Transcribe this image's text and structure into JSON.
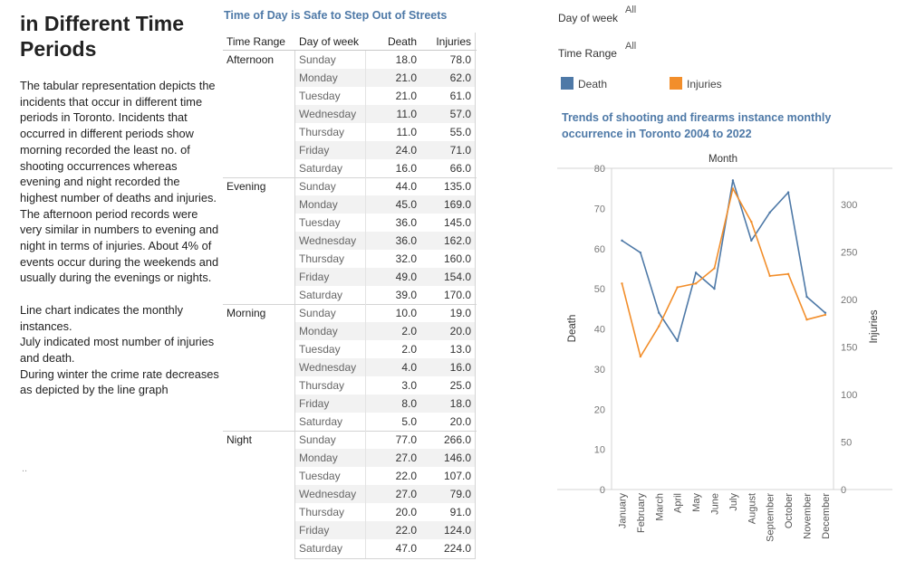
{
  "story": {
    "title": "in Different Time Periods",
    "paragraphs": [
      "The tabular representation depicts the incidents that occur in different time periods in Toronto. Incidents that occurred in different periods show morning recorded the least no. of shooting occurrences whereas evening and night recorded the highest number of deaths and injuries. The afternoon period records were very similar in numbers to evening and night in terms of injuries. About 4% of events occur during the weekends and usually during the evenings or nights.",
      "Line chart indicates the monthly instances.\nJuly indicated most number of injuries and death.\nDuring winter the crime rate decreases as depicted by the line graph"
    ],
    "ellipsis": ".."
  },
  "table": {
    "title": "Time of Day is Safe to Step Out of Streets",
    "headers": {
      "time_range": "Time Range",
      "day": "Day of week",
      "death": "Death",
      "injuries": "Injuries"
    },
    "groups": [
      {
        "name": "Afternoon",
        "rows": [
          [
            "Sunday",
            "18.0",
            "78.0"
          ],
          [
            "Monday",
            "21.0",
            "62.0"
          ],
          [
            "Tuesday",
            "21.0",
            "61.0"
          ],
          [
            "Wednesday",
            "11.0",
            "57.0"
          ],
          [
            "Thursday",
            "11.0",
            "55.0"
          ],
          [
            "Friday",
            "24.0",
            "71.0"
          ],
          [
            "Saturday",
            "16.0",
            "66.0"
          ]
        ]
      },
      {
        "name": "Evening",
        "rows": [
          [
            "Sunday",
            "44.0",
            "135.0"
          ],
          [
            "Monday",
            "45.0",
            "169.0"
          ],
          [
            "Tuesday",
            "36.0",
            "145.0"
          ],
          [
            "Wednesday",
            "36.0",
            "162.0"
          ],
          [
            "Thursday",
            "32.0",
            "160.0"
          ],
          [
            "Friday",
            "49.0",
            "154.0"
          ],
          [
            "Saturday",
            "39.0",
            "170.0"
          ]
        ]
      },
      {
        "name": "Morning",
        "rows": [
          [
            "Sunday",
            "10.0",
            "19.0"
          ],
          [
            "Monday",
            "2.0",
            "20.0"
          ],
          [
            "Tuesday",
            "2.0",
            "13.0"
          ],
          [
            "Wednesday",
            "4.0",
            "16.0"
          ],
          [
            "Thursday",
            "3.0",
            "25.0"
          ],
          [
            "Friday",
            "8.0",
            "18.0"
          ],
          [
            "Saturday",
            "5.0",
            "20.0"
          ]
        ]
      },
      {
        "name": "Night",
        "rows": [
          [
            "Sunday",
            "77.0",
            "266.0"
          ],
          [
            "Monday",
            "27.0",
            "146.0"
          ],
          [
            "Tuesday",
            "22.0",
            "107.0"
          ],
          [
            "Wednesday",
            "27.0",
            "79.0"
          ],
          [
            "Thursday",
            "20.0",
            "91.0"
          ],
          [
            "Friday",
            "22.0",
            "124.0"
          ],
          [
            "Saturday",
            "47.0",
            "224.0"
          ]
        ]
      }
    ]
  },
  "filters": {
    "day_of_week": {
      "label": "Day of week",
      "value": "All"
    },
    "time_range": {
      "label": "Time Range",
      "value": "All"
    }
  },
  "legend": {
    "death": {
      "label": "Death",
      "color": "#4e79a7"
    },
    "injuries": {
      "label": "Injuries",
      "color": "#f28e2b"
    }
  },
  "chart_title": "Trends of shooting and firearms instance monthly occurrence in Toronto 2004 to 2022",
  "chart_data": {
    "type": "line",
    "title": "Trends of shooting and firearms instance monthly occurrence in Toronto 2004 to 2022",
    "xlabel": "Month",
    "ylabel": "Death",
    "y2label": "Injuries",
    "categories": [
      "January",
      "February",
      "March",
      "April",
      "May",
      "June",
      "July",
      "August",
      "September",
      "October",
      "November",
      "December"
    ],
    "ylim": [
      0,
      80
    ],
    "y2lim": [
      0,
      325
    ],
    "yticks": [
      0,
      10,
      20,
      30,
      40,
      50,
      60,
      70,
      80
    ],
    "y2ticks": [
      0,
      50,
      100,
      150,
      200,
      250,
      300
    ],
    "series": [
      {
        "name": "Death",
        "axis": "left",
        "color": "#4e79a7",
        "values": [
          62,
          59,
          44,
          37,
          54,
          50,
          77,
          62,
          69,
          74,
          48,
          44
        ]
      },
      {
        "name": "Injuries",
        "axis": "right",
        "color": "#f28e2b",
        "values": [
          217,
          140,
          172,
          213,
          217,
          233,
          317,
          282,
          225,
          227,
          179,
          184
        ]
      }
    ]
  }
}
